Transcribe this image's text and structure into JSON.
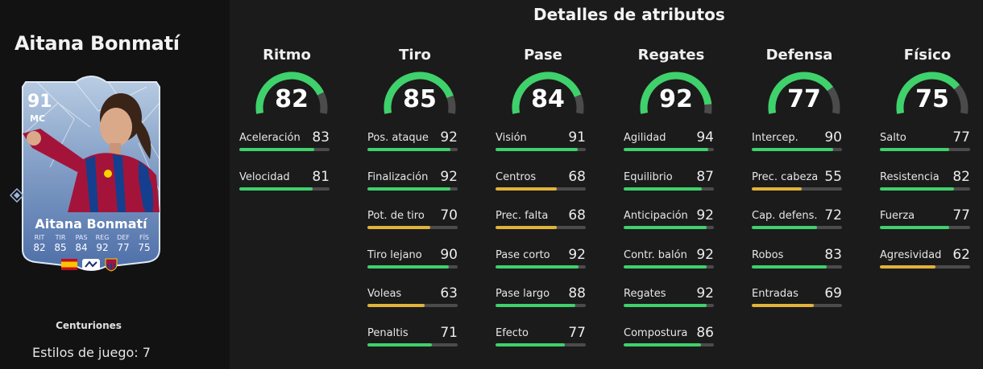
{
  "player": {
    "name": "Aitana Bonmatí",
    "card": {
      "rating": "91",
      "position": "MC",
      "name": "Aitana Bonmatí",
      "stats": [
        {
          "label": "RIT",
          "value": "82"
        },
        {
          "label": "TIR",
          "value": "85"
        },
        {
          "label": "PAS",
          "value": "84"
        },
        {
          "label": "REG",
          "value": "92"
        },
        {
          "label": "DEF",
          "value": "77"
        },
        {
          "label": "FÍS",
          "value": "75"
        }
      ],
      "flag_icons": [
        "spain-flag-icon",
        "liga-f-icon",
        "fc-barcelona-crest-icon"
      ]
    },
    "playstyle_name": "Centuriones",
    "playstyles_label": "Estilos de juego: 7"
  },
  "attributes": {
    "title": "Detalles de atributos",
    "colors": {
      "high": "#3fd16b",
      "medium": "#e2b23a",
      "track": "#4b4b4b"
    },
    "categories": [
      {
        "name": "Ritmo",
        "value": "82",
        "fraction": 0.82,
        "stats": [
          {
            "name": "Aceleración",
            "value": "83",
            "fraction": 0.83,
            "tier": "high"
          },
          {
            "name": "Velocidad",
            "value": "81",
            "fraction": 0.81,
            "tier": "high"
          }
        ]
      },
      {
        "name": "Tiro",
        "value": "85",
        "fraction": 0.85,
        "stats": [
          {
            "name": "Pos. ataque",
            "value": "92",
            "fraction": 0.92,
            "tier": "high"
          },
          {
            "name": "Finalización",
            "value": "92",
            "fraction": 0.92,
            "tier": "high"
          },
          {
            "name": "Pot. de tiro",
            "value": "70",
            "fraction": 0.7,
            "tier": "medium"
          },
          {
            "name": "Tiro lejano",
            "value": "90",
            "fraction": 0.9,
            "tier": "high"
          },
          {
            "name": "Voleas",
            "value": "63",
            "fraction": 0.63,
            "tier": "medium"
          },
          {
            "name": "Penaltis",
            "value": "71",
            "fraction": 0.71,
            "tier": "high"
          }
        ]
      },
      {
        "name": "Pase",
        "value": "84",
        "fraction": 0.84,
        "stats": [
          {
            "name": "Visión",
            "value": "91",
            "fraction": 0.91,
            "tier": "high"
          },
          {
            "name": "Centros",
            "value": "68",
            "fraction": 0.68,
            "tier": "medium"
          },
          {
            "name": "Prec. falta",
            "value": "68",
            "fraction": 0.68,
            "tier": "medium"
          },
          {
            "name": "Pase corto",
            "value": "92",
            "fraction": 0.92,
            "tier": "high"
          },
          {
            "name": "Pase largo",
            "value": "88",
            "fraction": 0.88,
            "tier": "high"
          },
          {
            "name": "Efecto",
            "value": "77",
            "fraction": 0.77,
            "tier": "high"
          }
        ]
      },
      {
        "name": "Regates",
        "value": "92",
        "fraction": 0.92,
        "stats": [
          {
            "name": "Agilidad",
            "value": "94",
            "fraction": 0.94,
            "tier": "high"
          },
          {
            "name": "Equilibrio",
            "value": "87",
            "fraction": 0.87,
            "tier": "high"
          },
          {
            "name": "Anticipación",
            "value": "92",
            "fraction": 0.92,
            "tier": "high"
          },
          {
            "name": "Contr. balón",
            "value": "92",
            "fraction": 0.92,
            "tier": "high"
          },
          {
            "name": "Regates",
            "value": "92",
            "fraction": 0.92,
            "tier": "high"
          },
          {
            "name": "Compostura",
            "value": "86",
            "fraction": 0.86,
            "tier": "high"
          }
        ]
      },
      {
        "name": "Defensa",
        "value": "77",
        "fraction": 0.77,
        "stats": [
          {
            "name": "Intercep.",
            "value": "90",
            "fraction": 0.9,
            "tier": "high"
          },
          {
            "name": "Prec. cabeza",
            "value": "55",
            "fraction": 0.55,
            "tier": "medium"
          },
          {
            "name": "Cap. defens.",
            "value": "72",
            "fraction": 0.72,
            "tier": "high"
          },
          {
            "name": "Robos",
            "value": "83",
            "fraction": 0.83,
            "tier": "high"
          },
          {
            "name": "Entradas",
            "value": "69",
            "fraction": 0.69,
            "tier": "medium"
          }
        ]
      },
      {
        "name": "Físico",
        "value": "75",
        "fraction": 0.75,
        "stats": [
          {
            "name": "Salto",
            "value": "77",
            "fraction": 0.77,
            "tier": "high"
          },
          {
            "name": "Resistencia",
            "value": "82",
            "fraction": 0.82,
            "tier": "high"
          },
          {
            "name": "Fuerza",
            "value": "77",
            "fraction": 0.77,
            "tier": "high"
          },
          {
            "name": "Agresividad",
            "value": "62",
            "fraction": 0.62,
            "tier": "medium"
          }
        ]
      }
    ]
  }
}
